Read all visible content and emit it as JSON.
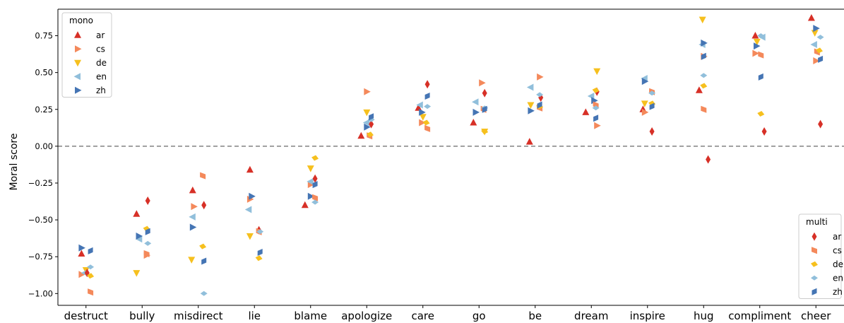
{
  "chart_data": {
    "type": "scatter",
    "title": "",
    "xlabel": "",
    "ylabel": "Moral score",
    "ylim": [
      -1.08,
      0.93
    ],
    "yticks": [
      -1.0,
      -0.75,
      -0.5,
      -0.25,
      0.0,
      0.25,
      0.5,
      0.75
    ],
    "ytick_labels": [
      "−1.00",
      "−0.75",
      "−0.50",
      "−0.25",
      "0.00",
      "0.25",
      "0.50",
      "0.75"
    ],
    "categories": [
      "destruct",
      "bully",
      "misdirect",
      "lie",
      "blame",
      "apologize",
      "care",
      "go",
      "be",
      "dream",
      "inspire",
      "hug",
      "compliment",
      "cheer"
    ],
    "reference_line": {
      "y": 0.0,
      "style": "dashed",
      "color": "#808080"
    },
    "languages": [
      "ar",
      "cs",
      "de",
      "en",
      "zh"
    ],
    "colors": {
      "ar": "#d73027",
      "cs": "#f4895b",
      "de": "#f6c01e",
      "en": "#91bfdb",
      "zh": "#4575b4"
    },
    "legends": [
      {
        "title": "mono",
        "placement": "top-left",
        "items": [
          {
            "label": "ar",
            "marker": "triangle-up",
            "lang": "ar"
          },
          {
            "label": "cs",
            "marker": "triangle-right",
            "lang": "cs"
          },
          {
            "label": "de",
            "marker": "triangle-down",
            "lang": "de"
          },
          {
            "label": "en",
            "marker": "triangle-left",
            "lang": "en"
          },
          {
            "label": "zh",
            "marker": "triangle-right",
            "lang": "zh"
          }
        ]
      },
      {
        "title": "multi",
        "placement": "bottom-right",
        "items": [
          {
            "label": "ar",
            "marker": "thin-diamond",
            "lang": "ar"
          },
          {
            "label": "cs",
            "marker": "diamond-left",
            "lang": "cs"
          },
          {
            "label": "de",
            "marker": "diamond-right",
            "lang": "de"
          },
          {
            "label": "en",
            "marker": "diamond-flat",
            "lang": "en"
          },
          {
            "label": "zh",
            "marker": "diamond-tilt",
            "lang": "zh"
          }
        ]
      }
    ],
    "series": [
      {
        "name": "mono ar",
        "group": "mono",
        "lang": "ar",
        "marker": "triangle-up",
        "values": [
          -0.73,
          -0.46,
          -0.3,
          -0.16,
          -0.4,
          0.07,
          0.26,
          0.16,
          0.03,
          0.23,
          0.25,
          0.38,
          0.75,
          0.87
        ],
        "x_offset": [
          -0.08,
          -0.1,
          -0.1,
          -0.08,
          -0.1,
          -0.1,
          -0.08,
          -0.1,
          -0.1,
          -0.1,
          -0.08,
          -0.08,
          -0.08,
          -0.08
        ]
      },
      {
        "name": "mono cs",
        "group": "mono",
        "lang": "cs",
        "marker": "triangle-right",
        "values": [
          -0.87,
          -0.74,
          -0.41,
          -0.36,
          -0.26,
          0.37,
          0.16,
          0.43,
          0.47,
          0.14,
          0.23,
          0.61,
          0.63,
          0.58
        ],
        "x_offset": [
          -0.08,
          0.08,
          -0.08,
          -0.08,
          0.0,
          0.0,
          -0.02,
          0.05,
          0.08,
          0.1,
          -0.05,
          0.0,
          -0.08,
          0.0
        ]
      },
      {
        "name": "mono de",
        "group": "mono",
        "lang": "de",
        "marker": "triangle-down",
        "values": [
          -0.84,
          -0.86,
          -0.77,
          -0.61,
          -0.15,
          0.23,
          0.2,
          0.1,
          0.28,
          0.51,
          0.29,
          0.86,
          0.71,
          0.77
        ],
        "x_offset": [
          0.0,
          -0.1,
          -0.12,
          -0.08,
          0.0,
          0.0,
          0.0,
          0.1,
          -0.08,
          0.1,
          -0.05,
          -0.02,
          -0.05,
          -0.02
        ]
      },
      {
        "name": "mono en",
        "group": "mono",
        "lang": "en",
        "marker": "triangle-left",
        "values": [
          -0.86,
          -0.63,
          -0.48,
          -0.43,
          -0.24,
          0.16,
          0.28,
          0.3,
          0.4,
          0.34,
          0.46,
          0.69,
          0.74,
          0.69
        ],
        "x_offset": [
          -0.02,
          -0.05,
          -0.1,
          -0.1,
          0.0,
          0.0,
          -0.05,
          -0.06,
          -0.08,
          0.0,
          -0.05,
          -0.02,
          0.05,
          -0.03
        ]
      },
      {
        "name": "mono zh",
        "group": "mono",
        "lang": "zh",
        "marker": "triangle-right",
        "values": [
          -0.69,
          -0.61,
          -0.55,
          -0.34,
          -0.34,
          0.13,
          0.23,
          0.23,
          0.24,
          0.31,
          0.44,
          0.7,
          0.68,
          0.8
        ],
        "x_offset": [
          -0.08,
          -0.06,
          -0.1,
          -0.05,
          0.0,
          0.0,
          -0.02,
          -0.06,
          -0.08,
          0.05,
          -0.05,
          0.0,
          -0.06,
          0.0
        ]
      },
      {
        "name": "multi ar",
        "group": "multi",
        "lang": "ar",
        "marker": "thin-diamond",
        "values": [
          -0.86,
          -0.37,
          -0.4,
          -0.57,
          -0.22,
          0.15,
          0.42,
          0.36,
          0.33,
          0.37,
          0.1,
          -0.09,
          0.1,
          0.15
        ],
        "x_offset": [
          0.02,
          0.1,
          0.1,
          0.08,
          0.08,
          0.08,
          0.08,
          0.1,
          0.1,
          0.1,
          0.08,
          0.08,
          0.08,
          0.08
        ]
      },
      {
        "name": "multi cs",
        "group": "multi",
        "lang": "cs",
        "marker": "diamond-left",
        "values": [
          -0.99,
          -0.73,
          -0.2,
          -0.58,
          -0.35,
          0.07,
          0.12,
          0.25,
          0.26,
          0.28,
          0.37,
          0.25,
          0.62,
          0.64
        ],
        "x_offset": [
          0.08,
          0.08,
          0.08,
          0.08,
          0.08,
          0.05,
          0.08,
          0.08,
          0.08,
          0.08,
          0.08,
          0.0,
          0.02,
          0.02
        ]
      },
      {
        "name": "multi de",
        "group": "multi",
        "lang": "de",
        "marker": "diamond-right",
        "values": [
          -0.88,
          -0.56,
          -0.68,
          -0.76,
          -0.08,
          0.08,
          0.16,
          0.1,
          0.27,
          0.38,
          0.29,
          0.41,
          0.22,
          0.65
        ],
        "x_offset": [
          0.08,
          0.08,
          0.08,
          0.08,
          0.08,
          0.06,
          0.06,
          0.1,
          0.08,
          0.08,
          0.08,
          0.0,
          0.02,
          0.06
        ]
      },
      {
        "name": "multi en",
        "group": "multi",
        "lang": "en",
        "marker": "diamond-flat",
        "values": [
          -0.82,
          -0.66,
          -1.0,
          -0.58,
          -0.38,
          0.18,
          0.27,
          0.26,
          0.35,
          0.26,
          0.36,
          0.48,
          0.75,
          0.74
        ],
        "x_offset": [
          0.08,
          0.1,
          0.1,
          0.1,
          0.08,
          0.08,
          0.08,
          0.1,
          0.08,
          0.08,
          0.08,
          0.0,
          0.02,
          0.08
        ]
      },
      {
        "name": "multi zh",
        "group": "multi",
        "lang": "zh",
        "marker": "diamond-tilt",
        "values": [
          -0.71,
          -0.58,
          -0.78,
          -0.72,
          -0.26,
          0.2,
          0.34,
          0.25,
          0.28,
          0.19,
          0.27,
          0.61,
          0.47,
          0.59
        ],
        "x_offset": [
          0.08,
          0.1,
          0.1,
          0.1,
          0.08,
          0.08,
          0.08,
          0.1,
          0.08,
          0.08,
          0.08,
          0.0,
          0.02,
          0.08
        ]
      }
    ]
  }
}
